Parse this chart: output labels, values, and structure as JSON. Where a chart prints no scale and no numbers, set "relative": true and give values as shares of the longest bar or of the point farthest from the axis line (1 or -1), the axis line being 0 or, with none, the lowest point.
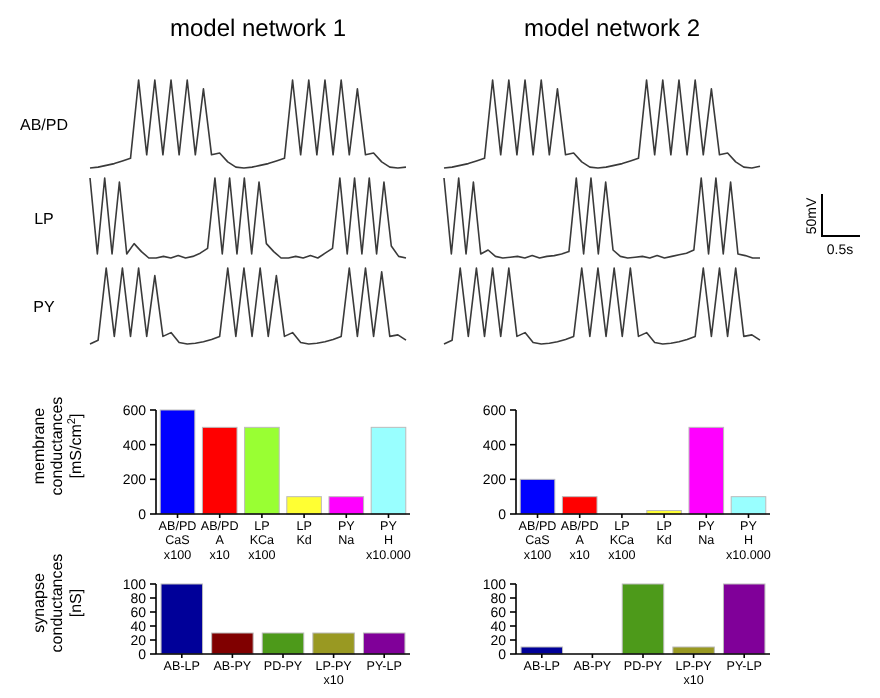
{
  "chart_data": [
    {
      "type": "line",
      "title": "model network 1",
      "ylabel": "AB/PD",
      "relative": true,
      "categories": [
        null,
        null,
        null,
        null,
        null,
        null,
        null,
        null,
        null,
        null,
        null,
        null,
        null,
        null,
        null,
        null,
        null,
        null,
        null,
        null,
        null,
        null,
        null,
        null,
        null,
        null,
        null,
        null,
        null,
        null,
        null,
        null,
        null,
        null,
        null,
        null,
        null,
        null,
        null,
        null
      ],
      "series": [
        {
          "color": "#3a3a3a",
          "values": [
            0,
            0.01,
            0.03,
            0.05,
            0.08,
            0.11,
            1,
            0.15,
            1,
            0.15,
            1,
            0.15,
            1,
            0.15,
            0.9,
            0.15,
            0.17,
            0.07,
            0.01,
            0,
            0.01,
            0.03,
            0.05,
            0.08,
            0.11,
            1,
            0.15,
            1,
            0.15,
            1,
            0.15,
            1,
            0.15,
            0.9,
            0.15,
            0.17,
            0.07,
            0.01,
            0,
            0.01
          ]
        }
      ]
    },
    {
      "type": "line",
      "title": "model network 2",
      "relative": true,
      "categories": [
        null,
        null,
        null,
        null,
        null,
        null,
        null,
        null,
        null,
        null,
        null,
        null,
        null,
        null,
        null,
        null,
        null,
        null,
        null,
        null,
        null,
        null,
        null,
        null,
        null,
        null,
        null,
        null,
        null,
        null,
        null,
        null,
        null,
        null,
        null,
        null,
        null,
        null,
        null,
        null
      ],
      "series": [
        {
          "color": "#3a3a3a",
          "values": [
            0,
            0.01,
            0.03,
            0.05,
            0.08,
            0.11,
            1,
            0.15,
            1,
            0.15,
            1,
            0.15,
            1,
            0.15,
            0.9,
            0.15,
            0.17,
            0.07,
            0.01,
            0,
            0.01,
            0.03,
            0.05,
            0.08,
            0.11,
            1,
            0.15,
            1,
            0.15,
            1,
            0.15,
            1,
            0.15,
            0.9,
            0.15,
            0.17,
            0.07,
            0.01,
            0,
            0.02
          ]
        }
      ]
    },
    {
      "type": "line",
      "ylabel": "LP",
      "relative": true,
      "categories": [
        null,
        null,
        null,
        null,
        null,
        null,
        null,
        null,
        null,
        null,
        null,
        null,
        null,
        null,
        null,
        null,
        null,
        null,
        null,
        null,
        null,
        null,
        null,
        null,
        null,
        null,
        null,
        null,
        null,
        null,
        null,
        null,
        null,
        null,
        null,
        null,
        null,
        null,
        null,
        null,
        null,
        null,
        null,
        null
      ],
      "series": [
        {
          "color": "#3a3a3a",
          "values": [
            1,
            0.05,
            1,
            0.05,
            0.95,
            0.05,
            0.18,
            0.08,
            0,
            0,
            0.02,
            0,
            0.03,
            0,
            0.02,
            0.06,
            0.12,
            1,
            0.05,
            1,
            0.05,
            1,
            0.05,
            0.95,
            0.18,
            0.08,
            0,
            0,
            0.02,
            0,
            0.03,
            0,
            0.06,
            0.12,
            1,
            0.05,
            1,
            0.05,
            1,
            0.05,
            0.95,
            0.15,
            0.02,
            0
          ]
        }
      ]
    },
    {
      "type": "line",
      "relative": true,
      "annotations": [
        "50mV",
        "0.5s"
      ],
      "categories": [
        null,
        null,
        null,
        null,
        null,
        null,
        null,
        null,
        null,
        null,
        null,
        null,
        null,
        null,
        null,
        null,
        null,
        null,
        null,
        null,
        null,
        null,
        null,
        null,
        null,
        null,
        null,
        null,
        null,
        null,
        null,
        null,
        null,
        null,
        null,
        null,
        null,
        null,
        null,
        null,
        null,
        null,
        null,
        null
      ],
      "series": [
        {
          "color": "#3a3a3a",
          "values": [
            1,
            0.05,
            1,
            0.05,
            0.95,
            0.05,
            0.1,
            0.02,
            0,
            0.01,
            0.02,
            0,
            0.03,
            0,
            0.02,
            0.03,
            0.05,
            0.08,
            1,
            0.05,
            1,
            0.05,
            0.95,
            0.1,
            0.02,
            0,
            0.01,
            0.02,
            0,
            0.03,
            0,
            0.02,
            0.04,
            0.06,
            0.1,
            1,
            0.05,
            1,
            0.05,
            0.95,
            0.05,
            0.03,
            0,
            0
          ]
        }
      ]
    },
    {
      "type": "line",
      "ylabel": "PY",
      "relative": true,
      "categories": [
        null,
        null,
        null,
        null,
        null,
        null,
        null,
        null,
        null,
        null,
        null,
        null,
        null,
        null,
        null,
        null,
        null,
        null,
        null,
        null,
        null,
        null,
        null,
        null,
        null,
        null,
        null,
        null,
        null,
        null,
        null,
        null,
        null,
        null,
        null,
        null,
        null,
        null,
        null,
        null
      ],
      "series": [
        {
          "color": "#3a3a3a",
          "values": [
            0,
            0.05,
            1,
            0.1,
            1,
            0.1,
            1,
            0.1,
            0.9,
            0.1,
            0.15,
            0.02,
            0,
            0.01,
            0.03,
            0.06,
            0.1,
            1,
            0.1,
            1,
            0.1,
            1,
            0.1,
            0.9,
            0.1,
            0.15,
            0.02,
            0,
            0.01,
            0.03,
            0.06,
            0.1,
            1,
            0.1,
            1,
            0.1,
            0.95,
            0.1,
            0.12,
            0.05
          ]
        }
      ]
    },
    {
      "type": "line",
      "relative": true,
      "categories": [
        null,
        null,
        null,
        null,
        null,
        null,
        null,
        null,
        null,
        null,
        null,
        null,
        null,
        null,
        null,
        null,
        null,
        null,
        null,
        null,
        null,
        null,
        null,
        null,
        null,
        null,
        null,
        null,
        null,
        null,
        null,
        null,
        null,
        null,
        null,
        null,
        null,
        null,
        null,
        null
      ],
      "series": [
        {
          "color": "#3a3a3a",
          "values": [
            0,
            0.05,
            1,
            0.1,
            1,
            0.1,
            1,
            0.1,
            1,
            0.1,
            0.15,
            0.02,
            0,
            0.01,
            0.03,
            0.06,
            0.1,
            1,
            0.1,
            1,
            0.1,
            1,
            0.1,
            1,
            0.1,
            0.15,
            0.02,
            0,
            0.01,
            0.03,
            0.06,
            0.1,
            1,
            0.1,
            1,
            0.1,
            1,
            0.1,
            0.12,
            0.05
          ]
        }
      ]
    },
    {
      "type": "bar",
      "ylabel": "membrane\nconductances\n[mS/cm$^{2}$]",
      "categories": [
        "AB/PD\nCaS\nx100",
        "AB/PD\nA\nx10",
        "LP\nKCa\nx100",
        "LP\nKd",
        "PY\nNa",
        "PY\nH\nx10.000"
      ],
      "values": [
        600,
        500,
        500,
        100,
        100,
        500
      ],
      "colors": [
        "#0000ff",
        "#ff0000",
        "#99ff33",
        "#ffff33",
        "#ff00ff",
        "#99ffff"
      ],
      "ylim": [
        0,
        600
      ],
      "yticks": [
        0,
        200,
        400,
        600
      ]
    },
    {
      "type": "bar",
      "categories": [
        "AB/PD\nCaS\nx100",
        "AB/PD\nA\nx10",
        "LP\nKCa\nx100",
        "LP\nKd",
        "PY\nNa",
        "PY\nH\nx10.000"
      ],
      "values": [
        200,
        100,
        0,
        20,
        500,
        100
      ],
      "colors": [
        "#0000ff",
        "#ff0000",
        "#99ff33",
        "#ffff33",
        "#ff00ff",
        "#99ffff"
      ],
      "ylim": [
        0,
        600
      ],
      "yticks": [
        0,
        200,
        400,
        600
      ]
    },
    {
      "type": "bar",
      "ylabel": "synapse\nconductances\n[nS]",
      "categories": [
        "AB-LP",
        "AB-PY",
        "PD-PY",
        "LP-PY\nx10",
        "PY-LP"
      ],
      "values": [
        100,
        30,
        30,
        30,
        30
      ],
      "colors": [
        "#000099",
        "#800000",
        "#4d9a1a",
        "#999922",
        "#800099"
      ],
      "ylim": [
        0,
        100
      ],
      "yticks": [
        0,
        20,
        40,
        60,
        80,
        100
      ]
    },
    {
      "type": "bar",
      "categories": [
        "AB-LP",
        "AB-PY",
        "PD-PY",
        "LP-PY\nx10",
        "PY-LP"
      ],
      "values": [
        10,
        0,
        100,
        10,
        100
      ],
      "colors": [
        "#000099",
        "#800000",
        "#4d9a1a",
        "#999922",
        "#800099"
      ],
      "ylim": [
        0,
        100
      ],
      "yticks": [
        0,
        20,
        40,
        60,
        80,
        100
      ]
    }
  ]
}
